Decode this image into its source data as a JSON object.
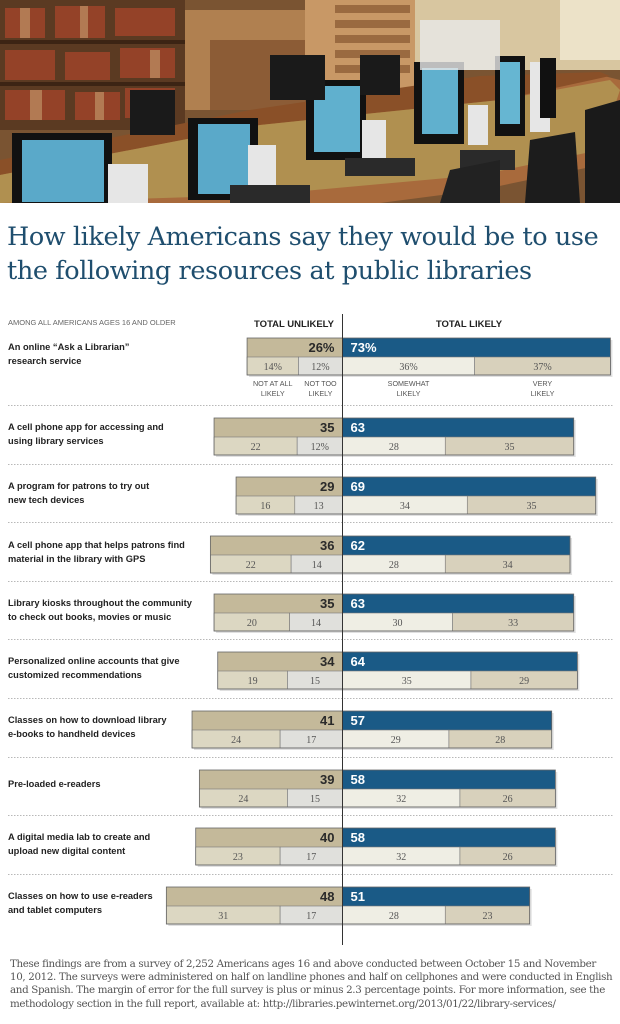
{
  "photo": {
    "description": "Library computer workstations with monitors, keyboards and bookshelves in background"
  },
  "chart_data": {
    "type": "bar",
    "orientation": "horizontal-diverging",
    "title": "How likely Americans say they would be to use the following resources at public libraries",
    "title_lines": [
      "How likely Americans say they would be to use",
      "the following resources at public libraries"
    ],
    "subtitle": "AMONG ALL AMERICANS AGES 16 AND OLDER",
    "column_headers": {
      "unlikely": "TOTAL UNLIKELY",
      "likely": "TOTAL LIKELY"
    },
    "sub_category_labels": {
      "not_at_all": [
        "NOT AT ALL",
        "LIKELY"
      ],
      "not_too": [
        "NOT TOO",
        "LIKELY"
      ],
      "somewhat": [
        "SOMEWHAT",
        "LIKELY"
      ],
      "very": [
        "VERY",
        "LIKELY"
      ]
    },
    "colors": {
      "unlikely_total": "#c4b99a",
      "likely_total": "#1a5a86",
      "not_at_all": "#dcd7c2",
      "not_too": "#e0e0dc",
      "somewhat": "#efeee4",
      "very": "#d8d1bc",
      "title": "#1f4e6e"
    },
    "units": "percent",
    "items": [
      {
        "label": [
          "An online “Ask a Librarian”",
          "research service"
        ],
        "total_unlikely": 26,
        "total_likely": 73,
        "not_at_all": 14,
        "not_too": 12,
        "somewhat": 36,
        "very": 37,
        "unlikely_label": "26%",
        "likely_label": "73%",
        "not_at_all_label": "14%",
        "not_too_label": "12%",
        "somewhat_label": "36%",
        "very_label": "37%"
      },
      {
        "label": [
          "A cell phone app for accessing and",
          "using library services"
        ],
        "total_unlikely": 35,
        "total_likely": 63,
        "not_at_all": 22,
        "not_too": 12,
        "somewhat": 28,
        "very": 35,
        "unlikely_label": "35",
        "likely_label": "63",
        "not_at_all_label": "22",
        "not_too_label": "12%",
        "somewhat_label": "28",
        "very_label": "35"
      },
      {
        "label": [
          "A program for patrons to try out",
          "new tech devices"
        ],
        "total_unlikely": 29,
        "total_likely": 69,
        "not_at_all": 16,
        "not_too": 13,
        "somewhat": 34,
        "very": 35,
        "unlikely_label": "29",
        "likely_label": "69",
        "not_at_all_label": "16",
        "not_too_label": "13",
        "somewhat_label": "34",
        "very_label": "35"
      },
      {
        "label": [
          "A cell phone app that helps patrons find",
          "material in the library with GPS"
        ],
        "total_unlikely": 36,
        "total_likely": 62,
        "not_at_all": 22,
        "not_too": 14,
        "somewhat": 28,
        "very": 34,
        "unlikely_label": "36",
        "likely_label": "62",
        "not_at_all_label": "22",
        "not_too_label": "14",
        "somewhat_label": "28",
        "very_label": "34"
      },
      {
        "label": [
          "Library kiosks throughout the community",
          "to check out books, movies or music"
        ],
        "total_unlikely": 35,
        "total_likely": 63,
        "not_at_all": 20,
        "not_too": 14,
        "somewhat": 30,
        "very": 33,
        "unlikely_label": "35",
        "likely_label": "63",
        "not_at_all_label": "20",
        "not_too_label": "14",
        "somewhat_label": "30",
        "very_label": "33"
      },
      {
        "label": [
          "Personalized online accounts that give",
          "customized recommendations"
        ],
        "total_unlikely": 34,
        "total_likely": 64,
        "not_at_all": 19,
        "not_too": 15,
        "somewhat": 35,
        "very": 29,
        "unlikely_label": "34",
        "likely_label": "64",
        "not_at_all_label": "19",
        "not_too_label": "15",
        "somewhat_label": "35",
        "very_label": "29"
      },
      {
        "label": [
          "Classes on how to download library",
          "e-books to handheld devices"
        ],
        "total_unlikely": 41,
        "total_likely": 57,
        "not_at_all": 24,
        "not_too": 17,
        "somewhat": 29,
        "very": 28,
        "unlikely_label": "41",
        "likely_label": "57",
        "not_at_all_label": "24",
        "not_too_label": "17",
        "somewhat_label": "29",
        "very_label": "28"
      },
      {
        "label": [
          "Pre-loaded e-readers"
        ],
        "total_unlikely": 39,
        "total_likely": 58,
        "not_at_all": 24,
        "not_too": 15,
        "somewhat": 32,
        "very": 26,
        "unlikely_label": "39",
        "likely_label": "58",
        "not_at_all_label": "24",
        "not_too_label": "15",
        "somewhat_label": "32",
        "very_label": "26"
      },
      {
        "label": [
          "A digital media lab to create and",
          "upload new digital content"
        ],
        "total_unlikely": 40,
        "total_likely": 58,
        "not_at_all": 23,
        "not_too": 17,
        "somewhat": 32,
        "very": 26,
        "unlikely_label": "40",
        "likely_label": "58",
        "not_at_all_label": "23",
        "not_too_label": "17",
        "somewhat_label": "32",
        "very_label": "26"
      },
      {
        "label": [
          "Classes on how to use e-readers",
          "and tablet computers"
        ],
        "total_unlikely": 48,
        "total_likely": 51,
        "not_at_all": 31,
        "not_too": 17,
        "somewhat": 28,
        "very": 23,
        "unlikely_label": "48",
        "likely_label": "51",
        "not_at_all_label": "31",
        "not_too_label": "17",
        "somewhat_label": "28",
        "very_label": "23"
      }
    ]
  },
  "footnote": "These findings are from a survey of 2,252 Americans ages 16 and above conducted between October 15 and November 10, 2012. The surveys were administered on half on landline phones and half on cellphones and were conducted in English and Spanish. The margin of error for the full survey is plus or minus 2.3 percentage points. For more information, see the methodology section in the full report, available at: http://libraries.pewinternet.org/2013/01/22/library-services/"
}
